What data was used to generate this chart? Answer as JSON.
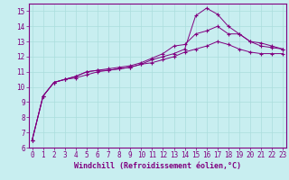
{
  "title": "",
  "xlabel": "Windchill (Refroidissement éolien,°C)",
  "bg_color": "#c8eef0",
  "line_color": "#800080",
  "grid_color": "#aadddd",
  "series": {
    "line1": [
      [
        0,
        6.5
      ],
      [
        1,
        9.4
      ],
      [
        2,
        10.3
      ],
      [
        3,
        10.5
      ],
      [
        4,
        10.7
      ],
      [
        5,
        11.0
      ],
      [
        6,
        11.1
      ],
      [
        7,
        11.1
      ],
      [
        8,
        11.2
      ],
      [
        9,
        11.3
      ],
      [
        10,
        11.5
      ],
      [
        11,
        11.8
      ],
      [
        12,
        12.0
      ],
      [
        13,
        12.2
      ],
      [
        14,
        12.5
      ],
      [
        15,
        14.7
      ],
      [
        16,
        15.2
      ],
      [
        17,
        14.8
      ],
      [
        18,
        14.0
      ],
      [
        19,
        13.5
      ],
      [
        20,
        13.0
      ],
      [
        21,
        12.7
      ],
      [
        22,
        12.6
      ],
      [
        23,
        12.5
      ]
    ],
    "line2": [
      [
        0,
        6.5
      ],
      [
        1,
        9.4
      ],
      [
        2,
        10.3
      ],
      [
        3,
        10.5
      ],
      [
        4,
        10.7
      ],
      [
        5,
        11.0
      ],
      [
        6,
        11.1
      ],
      [
        7,
        11.2
      ],
      [
        8,
        11.3
      ],
      [
        9,
        11.4
      ],
      [
        10,
        11.6
      ],
      [
        11,
        11.9
      ],
      [
        12,
        12.2
      ],
      [
        13,
        12.7
      ],
      [
        14,
        12.8
      ],
      [
        15,
        13.5
      ],
      [
        16,
        13.7
      ],
      [
        17,
        14.0
      ],
      [
        18,
        13.5
      ],
      [
        19,
        13.5
      ],
      [
        20,
        13.0
      ],
      [
        21,
        12.9
      ],
      [
        22,
        12.7
      ],
      [
        23,
        12.5
      ]
    ],
    "line3": [
      [
        0,
        6.5
      ],
      [
        1,
        9.4
      ],
      [
        2,
        10.3
      ],
      [
        3,
        10.5
      ],
      [
        4,
        10.6
      ],
      [
        5,
        10.8
      ],
      [
        6,
        11.0
      ],
      [
        7,
        11.1
      ],
      [
        8,
        11.2
      ],
      [
        9,
        11.3
      ],
      [
        10,
        11.5
      ],
      [
        11,
        11.6
      ],
      [
        12,
        11.8
      ],
      [
        13,
        12.0
      ],
      [
        14,
        12.3
      ],
      [
        15,
        12.5
      ],
      [
        16,
        12.7
      ],
      [
        17,
        13.0
      ],
      [
        18,
        12.8
      ],
      [
        19,
        12.5
      ],
      [
        20,
        12.3
      ],
      [
        21,
        12.2
      ],
      [
        22,
        12.2
      ],
      [
        23,
        12.2
      ]
    ]
  },
  "xlim": [
    -0.3,
    23.3
  ],
  "ylim": [
    6,
    15.5
  ],
  "yticks": [
    6,
    7,
    8,
    9,
    10,
    11,
    12,
    13,
    14,
    15
  ],
  "xticks": [
    0,
    1,
    2,
    3,
    4,
    5,
    6,
    7,
    8,
    9,
    10,
    11,
    12,
    13,
    14,
    15,
    16,
    17,
    18,
    19,
    20,
    21,
    22,
    23
  ],
  "tick_fontsize": 5.5,
  "xlabel_fontsize": 6
}
